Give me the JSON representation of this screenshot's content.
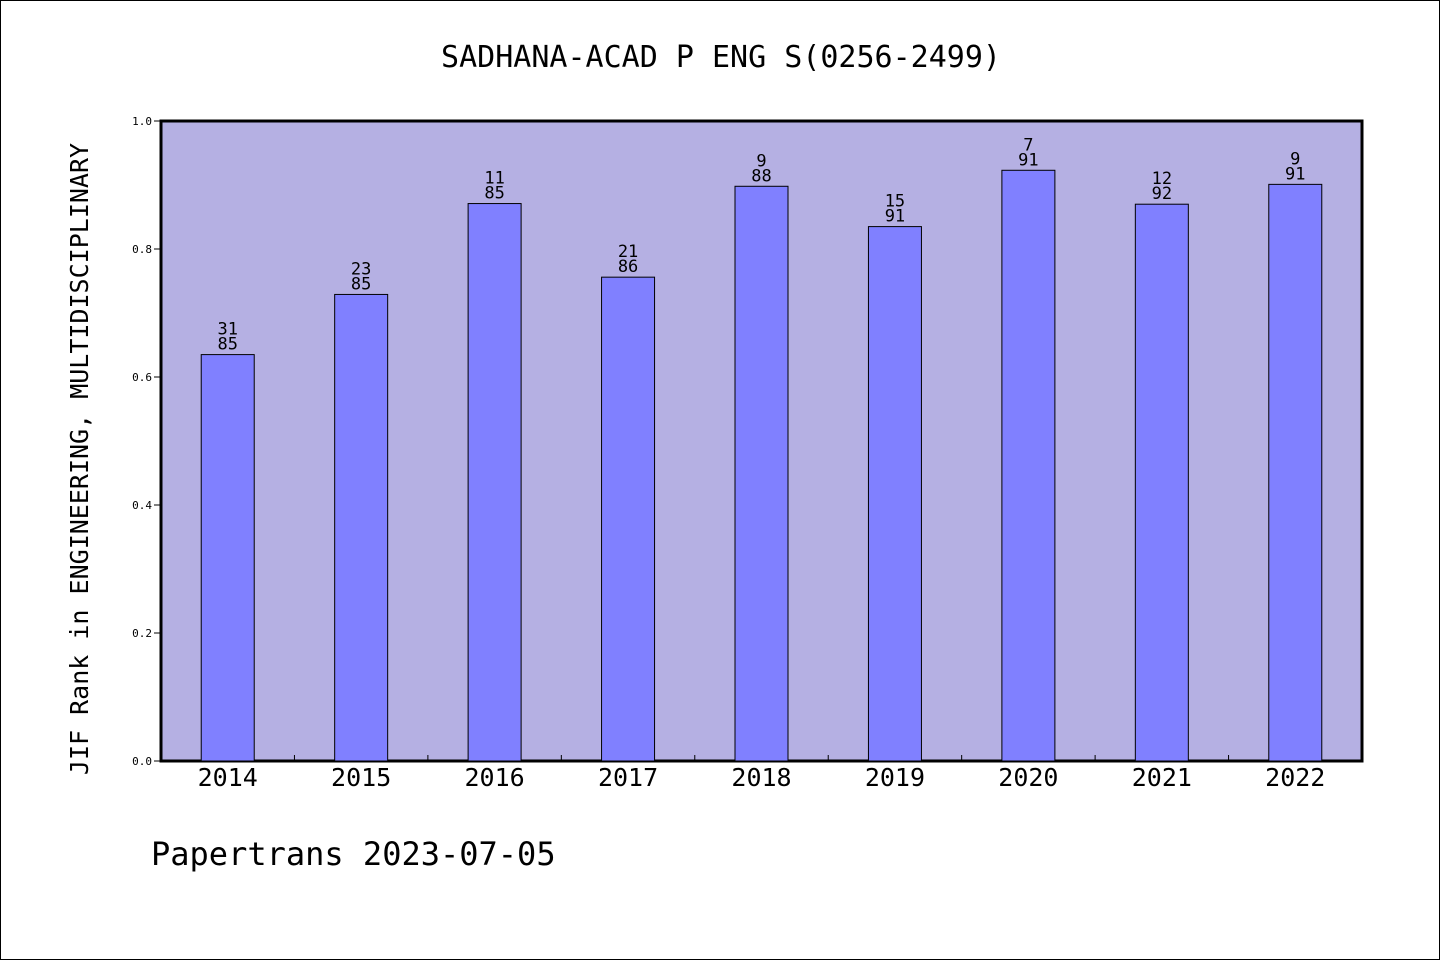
{
  "chart_data": {
    "type": "bar",
    "title": "SADHANA-ACAD P ENG S(0256-2499)",
    "ylabel": "JIF Rank in ENGINEERING, MULTIDISCIPLINARY",
    "xlabel": "",
    "footer": "Papertrans 2023-07-05",
    "categories": [
      "2014",
      "2015",
      "2016",
      "2017",
      "2018",
      "2019",
      "2020",
      "2021",
      "2022"
    ],
    "values": [
      0.635,
      0.729,
      0.871,
      0.756,
      0.898,
      0.835,
      0.923,
      0.87,
      0.901
    ],
    "rank": [
      "31",
      "23",
      "11",
      "21",
      "9",
      "15",
      "7",
      "12",
      "9"
    ],
    "total": [
      "85",
      "85",
      "85",
      "86",
      "88",
      "91",
      "91",
      "92",
      "91"
    ],
    "ylim": [
      0,
      1.0
    ],
    "yticks": [
      "0.0",
      "0.2",
      "0.4",
      "0.6",
      "0.8",
      "1.0"
    ],
    "grid": false,
    "colors": {
      "plot_bg": "#b5b0e3",
      "bar": "#8080ff",
      "bar_edge": "#000000"
    }
  }
}
